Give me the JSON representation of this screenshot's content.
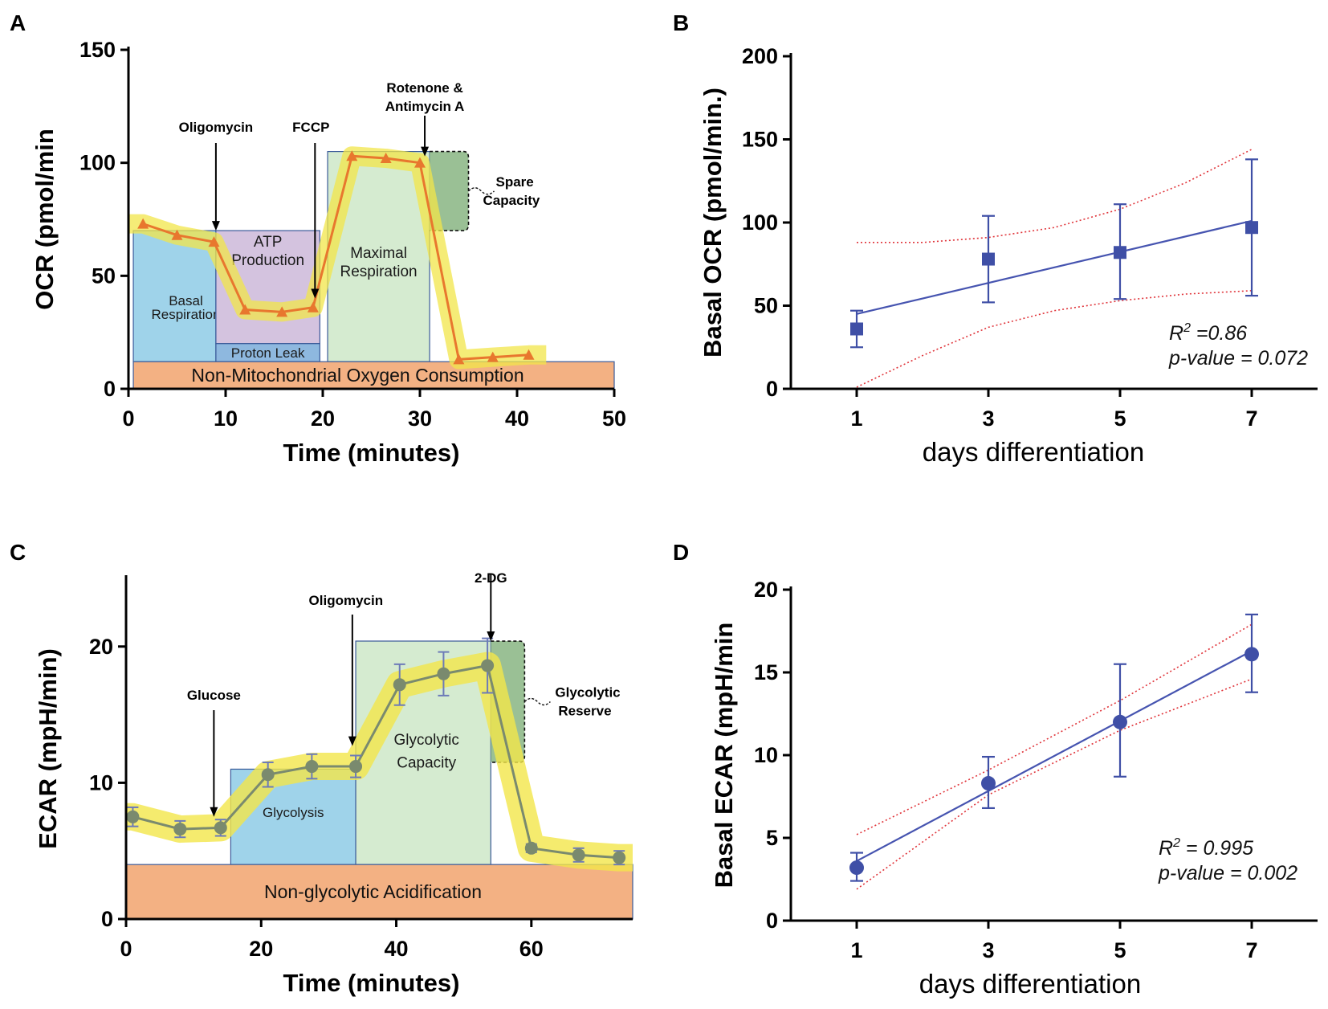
{
  "chart_data": [
    {
      "panel": "A",
      "type": "line",
      "xlabel": "Time (minutes)",
      "ylabel": "OCR (pmol/min",
      "xlim": [
        0,
        50
      ],
      "ylim": [
        0,
        150
      ],
      "xticks": [
        0,
        10,
        20,
        30,
        40,
        50
      ],
      "yticks": [
        0,
        50,
        100,
        150
      ],
      "series": [
        {
          "name": "OCR",
          "color": "#e8772e",
          "x": [
            1.5,
            5,
            8.8,
            12,
            15.8,
            19,
            23,
            26.5,
            30,
            34,
            37.5,
            41.2
          ],
          "y": [
            73,
            68,
            65,
            35,
            34,
            36,
            103,
            102,
            100,
            13,
            14,
            15
          ]
        }
      ],
      "injections": [
        {
          "label": "Oligomycin",
          "x": 9,
          "y": 70
        },
        {
          "label": "FCCP",
          "x": 19.2,
          "y": 40
        },
        {
          "label": "Rotenone &",
          "label2": "Antimycin A",
          "x": 30.5,
          "y": 105
        }
      ],
      "regions": [
        {
          "label": "Basal",
          "label2": "Respiration",
          "x0": 0.5,
          "x1": 9,
          "y0": 12,
          "y1": 70,
          "color": "#9fd3ea"
        },
        {
          "label": "ATP",
          "label2": "Production",
          "x0": 9,
          "x1": 19.7,
          "y0": 20,
          "y1": 70,
          "color": "#d4c3df"
        },
        {
          "label": "Proton Leak",
          "x0": 9,
          "x1": 19.7,
          "y0": 12,
          "y1": 20,
          "color": "#8eb8df"
        },
        {
          "label": "Maximal",
          "label2": "Respiration",
          "x0": 20.5,
          "x1": 31,
          "y0": 12,
          "y1": 105,
          "color": "#d5ebd0"
        },
        {
          "label": "Non-Mitochondrial Oxygen Consumption",
          "x0": 0.5,
          "x1": 50,
          "y0": 0,
          "y1": 12,
          "color": "#f3b183"
        }
      ],
      "bracket": {
        "label": "Spare",
        "label2": "Capacity",
        "x0": 31,
        "x1": 35,
        "y0": 70,
        "y1": 105,
        "color": "#8fb98a"
      }
    },
    {
      "panel": "B",
      "type": "scatter",
      "xlabel": "days differentiation",
      "ylabel": "Basal OCR (pmol/min.)",
      "xlim": [
        0,
        8
      ],
      "ylim": [
        0,
        200
      ],
      "xticks": [
        1,
        3,
        5,
        7
      ],
      "yticks": [
        0,
        50,
        100,
        150,
        200
      ],
      "series": [
        {
          "name": "Basal OCR",
          "marker": "square",
          "color": "#3f4fa6",
          "x": [
            1,
            3,
            5,
            7
          ],
          "y": [
            36,
            78,
            82,
            97
          ],
          "err_low": [
            25,
            52,
            54,
            56
          ],
          "err_high": [
            47,
            104,
            111,
            138
          ]
        }
      ],
      "fit": {
        "x": [
          1,
          7
        ],
        "y": [
          45,
          101
        ]
      },
      "ci_lower": {
        "x": [
          1,
          2,
          3,
          4,
          5,
          6,
          7
        ],
        "y": [
          1,
          20,
          37,
          47,
          53,
          57,
          59
        ]
      },
      "ci_upper": {
        "x": [
          1,
          2,
          3,
          4,
          5,
          6,
          7
        ],
        "y": [
          88,
          88,
          91,
          97,
          108,
          124,
          144
        ]
      },
      "stats": {
        "r2_label": "R",
        "r2_sup": "2",
        "r2_value": " =0.86",
        "p_value": "p-value = 0.072"
      }
    },
    {
      "panel": "C",
      "type": "line",
      "xlabel": "Time (minutes)",
      "ylabel": "ECAR (mpH/min)",
      "xlim": [
        0,
        75
      ],
      "ylim": [
        0,
        25
      ],
      "xticks": [
        0,
        20,
        40,
        60
      ],
      "yticks": [
        0,
        10,
        20
      ],
      "series": [
        {
          "name": "ECAR",
          "color": "#7a8a6e",
          "x": [
            1,
            8,
            14,
            21,
            27.5,
            34,
            40.5,
            47,
            53.5,
            60,
            67,
            73
          ],
          "y": [
            7.5,
            6.6,
            6.7,
            10.6,
            11.2,
            11.2,
            17.2,
            18,
            18.6,
            5.2,
            4.7,
            4.5
          ],
          "err": [
            0.7,
            0.6,
            0.6,
            0.9,
            0.9,
            0.8,
            1.5,
            1.6,
            2.0,
            0.3,
            0.5,
            0.5
          ]
        }
      ],
      "injections": [
        {
          "label": "Glucose",
          "x": 13,
          "y": 7.5
        },
        {
          "label": "Oligomycin",
          "x": 33.5,
          "y": 12.7
        },
        {
          "label": "2-DG",
          "x": 54,
          "y": 20.4
        }
      ],
      "regions": [
        {
          "label": "Glycolysis",
          "x0": 15.5,
          "x1": 34,
          "y0": 4,
          "y1": 11,
          "color": "#9fd3ea"
        },
        {
          "label": "Glycolytic",
          "label2": "Capacity",
          "x0": 34,
          "x1": 54,
          "y0": 4,
          "y1": 20.4,
          "color": "#d5ebd0"
        },
        {
          "label": "Non-glycolytic Acidification",
          "x0": 0,
          "x1": 75,
          "y0": 0,
          "y1": 4,
          "color": "#f3b183"
        }
      ],
      "bracket": {
        "label": "Glycolytic",
        "label2": "Reserve",
        "x0": 54,
        "x1": 59,
        "y0": 11.5,
        "y1": 20.4,
        "color": "#8fb98a"
      }
    },
    {
      "panel": "D",
      "type": "scatter",
      "xlabel": "days differentiation",
      "ylabel": "Basal ECAR (mpH/min",
      "xlim": [
        0,
        8
      ],
      "ylim": [
        0,
        20
      ],
      "xticks": [
        1,
        3,
        5,
        7
      ],
      "yticks": [
        0,
        5,
        10,
        15,
        20
      ],
      "series": [
        {
          "name": "Basal ECAR",
          "marker": "circle",
          "color": "#3f4fa6",
          "x": [
            1,
            3,
            5,
            7
          ],
          "y": [
            3.2,
            8.3,
            12,
            16.1
          ],
          "err_low": [
            2.4,
            6.8,
            8.7,
            13.8
          ],
          "err_high": [
            4.1,
            9.9,
            15.5,
            18.5
          ]
        }
      ],
      "fit": {
        "x": [
          1,
          7
        ],
        "y": [
          3.6,
          16.3
        ]
      },
      "ci_lower": {
        "x": [
          1,
          3,
          5,
          7
        ],
        "y": [
          1.9,
          7.6,
          11.5,
          14.6
        ]
      },
      "ci_upper": {
        "x": [
          1,
          3,
          5,
          7
        ],
        "y": [
          5.2,
          9.1,
          13.3,
          17.9
        ]
      },
      "stats": {
        "r2_label": "R",
        "r2_sup": "2",
        "r2_value": " = 0.995",
        "p_value": "p-value = 0.002"
      }
    }
  ],
  "panels": {
    "a": "A",
    "b": "B",
    "c": "C",
    "d": "D"
  }
}
